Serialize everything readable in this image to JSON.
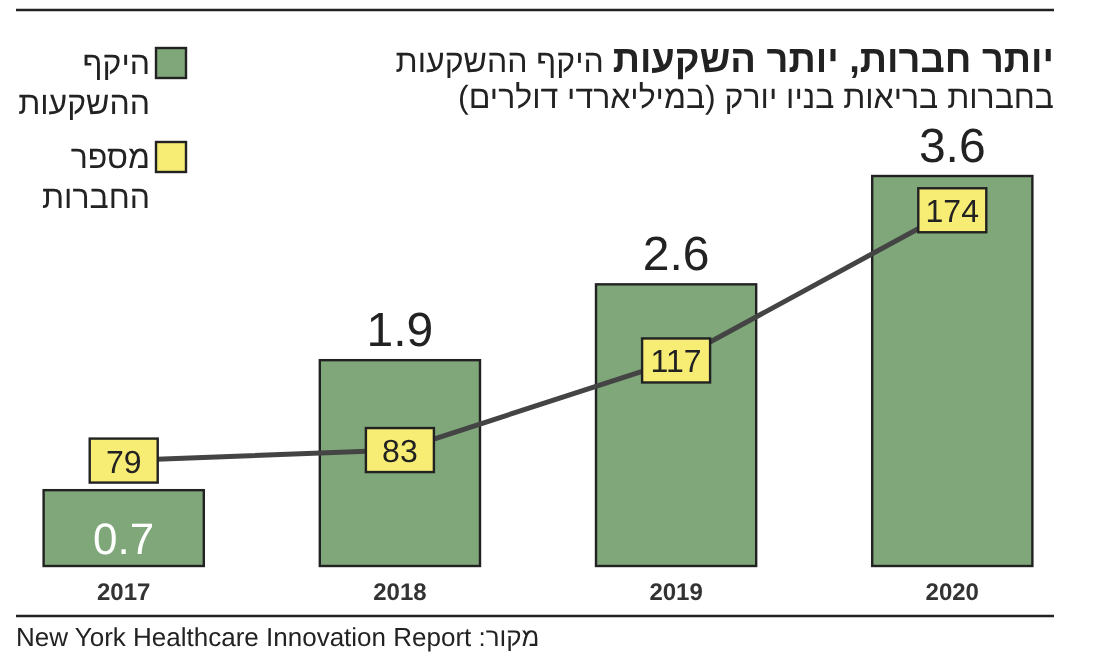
{
  "chart_data": {
    "type": "bar",
    "title": "יותר חברות, יותר השקעות",
    "subtitle": "היקף ההשקעות בחברות בריאות בניו יורק (במיליארדי דולרים)",
    "categories": [
      "2017",
      "2018",
      "2019",
      "2020"
    ],
    "series": [
      {
        "name": "היקף ההשקעות",
        "color": "#7fa77a",
        "values": [
          0.7,
          1.9,
          2.6,
          3.6
        ]
      },
      {
        "name": "מספר החברות",
        "type": "line",
        "axis": "y2",
        "color": "#f7ec74",
        "marker": "square",
        "values": [
          79,
          83,
          117,
          174
        ]
      }
    ],
    "ylim": [
      0,
      3.6
    ],
    "y2lim": [
      39,
      187
    ],
    "data_labels": true,
    "legend": "top left",
    "tick_labels": "x",
    "annotations": [
      "מקור: New York Healthcare Innovation Report"
    ]
  }
}
